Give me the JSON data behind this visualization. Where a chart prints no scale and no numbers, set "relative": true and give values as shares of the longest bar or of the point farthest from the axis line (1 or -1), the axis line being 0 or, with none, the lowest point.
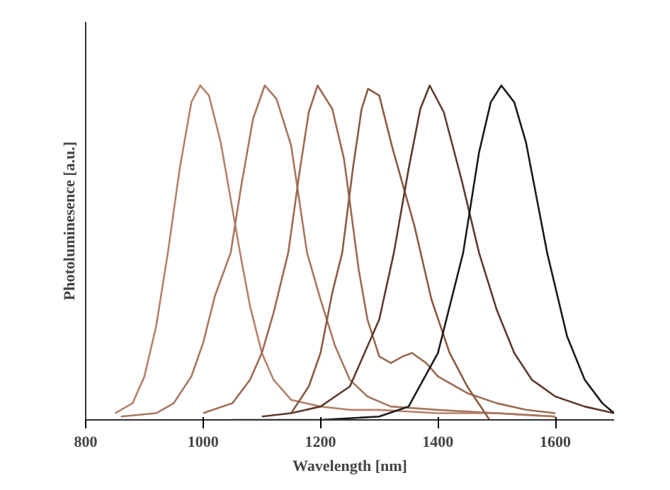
{
  "chart_data": {
    "type": "line",
    "xlabel": "Wavelength [nm]",
    "ylabel": "Photoluminesence [a.u.]",
    "relative": true,
    "xlim": [
      800,
      1700
    ],
    "xticks": [
      800,
      1000,
      1200,
      1400,
      1600
    ],
    "grid": false,
    "marker": "none",
    "line_style": "solid",
    "series": [
      {
        "color": "#b4826a",
        "x": [
          850,
          880,
          900,
          920,
          940,
          960,
          980,
          995,
          1010,
          1030,
          1050,
          1065,
          1080,
          1100,
          1120,
          1150,
          1200,
          1250,
          1300,
          1400,
          1500,
          1600
        ],
        "values": [
          0.02,
          0.05,
          0.13,
          0.28,
          0.5,
          0.75,
          0.95,
          1.0,
          0.97,
          0.83,
          0.63,
          0.48,
          0.34,
          0.2,
          0.12,
          0.06,
          0.04,
          0.03,
          0.03,
          0.02,
          0.02,
          0.01
        ]
      },
      {
        "color": "#a8765e",
        "x": [
          860,
          920,
          950,
          980,
          1000,
          1020,
          1047,
          1065,
          1085,
          1105,
          1125,
          1150,
          1177,
          1200,
          1225,
          1250,
          1280,
          1320,
          1400,
          1500,
          1600
        ],
        "values": [
          0.01,
          0.02,
          0.05,
          0.13,
          0.23,
          0.37,
          0.5,
          0.7,
          0.9,
          1.0,
          0.96,
          0.82,
          0.5,
          0.36,
          0.22,
          0.12,
          0.07,
          0.04,
          0.03,
          0.02,
          0.01
        ]
      },
      {
        "color": "#9c6a52",
        "x": [
          1000,
          1050,
          1080,
          1100,
          1120,
          1145,
          1165,
          1180,
          1195,
          1220,
          1240,
          1250,
          1265,
          1280,
          1300,
          1320,
          1340,
          1356,
          1380,
          1400,
          1450,
          1500,
          1550,
          1600
        ],
        "values": [
          0.02,
          0.05,
          0.12,
          0.2,
          0.32,
          0.5,
          0.75,
          0.92,
          1.0,
          0.93,
          0.78,
          0.65,
          0.45,
          0.3,
          0.19,
          0.17,
          0.19,
          0.2,
          0.17,
          0.13,
          0.08,
          0.05,
          0.03,
          0.02
        ]
      },
      {
        "color": "#8a5a44",
        "x": [
          1150,
          1180,
          1200,
          1220,
          1237,
          1255,
          1270,
          1281,
          1300,
          1323,
          1360,
          1389,
          1420,
          1450,
          1488
        ],
        "values": [
          0.02,
          0.1,
          0.2,
          0.38,
          0.5,
          0.75,
          0.93,
          0.99,
          0.97,
          0.81,
          0.58,
          0.36,
          0.2,
          0.1,
          0.0
        ]
      },
      {
        "color": "#5e3a2c",
        "x": [
          1100,
          1150,
          1200,
          1250,
          1300,
          1325,
          1350,
          1370,
          1386,
          1410,
          1440,
          1470,
          1500,
          1530,
          1560,
          1600,
          1650,
          1700
        ],
        "values": [
          0.01,
          0.02,
          0.04,
          0.1,
          0.3,
          0.5,
          0.75,
          0.93,
          1.0,
          0.92,
          0.72,
          0.5,
          0.33,
          0.2,
          0.12,
          0.07,
          0.04,
          0.02
        ]
      },
      {
        "color": "#1a1a1a",
        "x": [
          1050,
          1200,
          1300,
          1350,
          1400,
          1443,
          1470,
          1490,
          1508,
          1530,
          1550,
          1586,
          1620,
          1650,
          1680,
          1700
        ],
        "values": [
          0.0,
          0.0,
          0.01,
          0.04,
          0.2,
          0.5,
          0.8,
          0.95,
          1.0,
          0.95,
          0.83,
          0.5,
          0.25,
          0.12,
          0.05,
          0.02
        ]
      }
    ]
  }
}
